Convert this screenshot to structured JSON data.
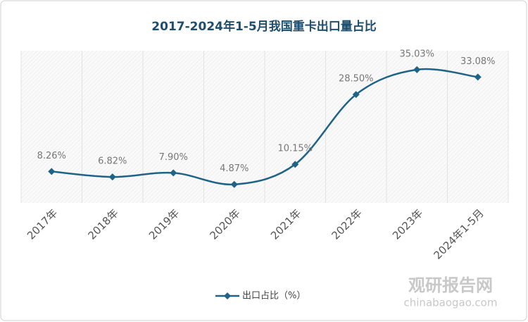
{
  "chart_data": {
    "type": "line",
    "title": "2017-2024年1-5月我国重卡出口量占比",
    "categories": [
      "2017年",
      "2018年",
      "2019年",
      "2020年",
      "2021年",
      "2022年",
      "2023年",
      "2024年1-5月"
    ],
    "series": [
      {
        "name": "出口占比（%）",
        "color": "#1f6386",
        "values": [
          8.26,
          6.82,
          7.9,
          4.87,
          10.15,
          28.5,
          35.03,
          33.08
        ],
        "value_labels": [
          "8.26%",
          "6.82%",
          "7.90%",
          "4.87%",
          "10.15%",
          "28.50%",
          "35.03%",
          "33.08%"
        ]
      }
    ],
    "ylim": [
      0,
      40
    ],
    "grid": true,
    "legend": "bottom",
    "watermark": {
      "brand": "观研报告网",
      "url": "chinabaogao.com"
    }
  }
}
